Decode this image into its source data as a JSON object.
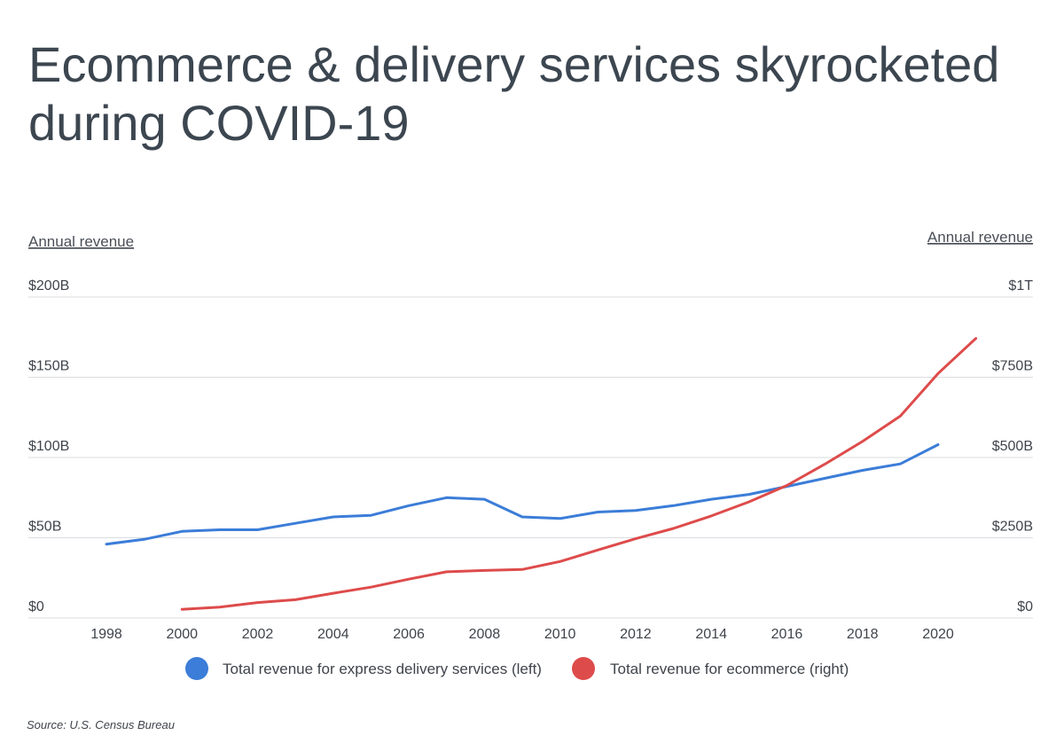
{
  "title": "Ecommerce & delivery services skyrocketed during COVID-19",
  "source": "Source:  U.S. Census Bureau",
  "colors": {
    "left_series": "#3b7dd8",
    "right_series": "#de4b4b",
    "grid": "#d9dcdf",
    "title": "#3c4650"
  },
  "chart_data": {
    "type": "line",
    "title": "Ecommerce & delivery services skyrocketed during COVID-19",
    "ylabel_left": "Annual revenue",
    "ylabel_right": "Annual revenue",
    "xlim": [
      1998,
      2021
    ],
    "ylim_left": [
      0,
      200
    ],
    "ylim_right": [
      0,
      1000
    ],
    "x_ticks": [
      "1998",
      "2000",
      "2002",
      "2004",
      "2006",
      "2008",
      "2010",
      "2012",
      "2014",
      "2016",
      "2018",
      "2020"
    ],
    "left_ticks": [
      "$0",
      "$50B",
      "$100B",
      "$150B",
      "$200B"
    ],
    "right_ticks": [
      "$0",
      "$250B",
      "$500B",
      "$750B",
      "$1T"
    ],
    "grid": true,
    "legend_position": "bottom",
    "series": [
      {
        "name": "Total revenue for express delivery services (left)",
        "axis": "left",
        "color": "#3b7dd8",
        "x": [
          1998,
          1999,
          2000,
          2001,
          2002,
          2003,
          2004,
          2005,
          2006,
          2007,
          2008,
          2009,
          2010,
          2011,
          2012,
          2013,
          2014,
          2015,
          2016,
          2017,
          2018,
          2019,
          2020
        ],
        "y": [
          46,
          49,
          54,
          55,
          55,
          59,
          63,
          64,
          70,
          75,
          74,
          63,
          62,
          66,
          67,
          70,
          74,
          77,
          82,
          87,
          92,
          96,
          108
        ]
      },
      {
        "name": "Total revenue for ecommerce (right)",
        "axis": "right",
        "color": "#de4b4b",
        "x": [
          2000,
          2001,
          2002,
          2003,
          2004,
          2005,
          2006,
          2007,
          2008,
          2009,
          2010,
          2011,
          2012,
          2013,
          2014,
          2015,
          2016,
          2017,
          2018,
          2019,
          2020,
          2021
        ],
        "y": [
          27,
          34,
          48,
          57,
          77,
          96,
          121,
          144,
          148,
          151,
          176,
          212,
          247,
          279,
          318,
          362,
          413,
          479,
          550,
          629,
          762,
          871
        ]
      }
    ]
  }
}
